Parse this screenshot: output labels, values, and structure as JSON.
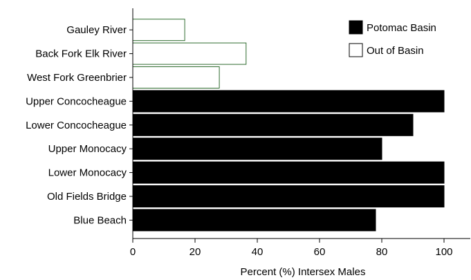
{
  "chart_data": {
    "type": "bar",
    "orientation": "horizontal",
    "categories": [
      "Gauley River",
      "Back Fork Elk River",
      "West Fork Greenbrier",
      "Upper Concocheague",
      "Lower Concocheague",
      "Upper Monocacy",
      "Lower Monocacy",
      "Old Fields Bridge",
      "Blue Beach"
    ],
    "values": [
      16.7,
      36.4,
      27.8,
      100,
      90,
      80,
      100,
      100,
      78
    ],
    "groups": [
      "Out of Basin",
      "Out of Basin",
      "Out of Basin",
      "Potomac Basin",
      "Potomac Basin",
      "Potomac Basin",
      "Potomac Basin",
      "Potomac Basin",
      "Potomac Basin"
    ],
    "legend": [
      {
        "name": "Potomac Basin",
        "fill": "#000000",
        "stroke": "#000000"
      },
      {
        "name": "Out of Basin",
        "fill": "#ffffff",
        "stroke": "#000000"
      }
    ],
    "out_of_basin_bar_stroke": "#2e6b2e",
    "xlabel": "Percent (%) Intersex Males",
    "ylabel": "",
    "title": "",
    "xlim": [
      0,
      108
    ],
    "xticks": [
      0,
      20,
      40,
      60,
      80,
      100
    ],
    "legend_position": "top-right",
    "grid": false
  }
}
